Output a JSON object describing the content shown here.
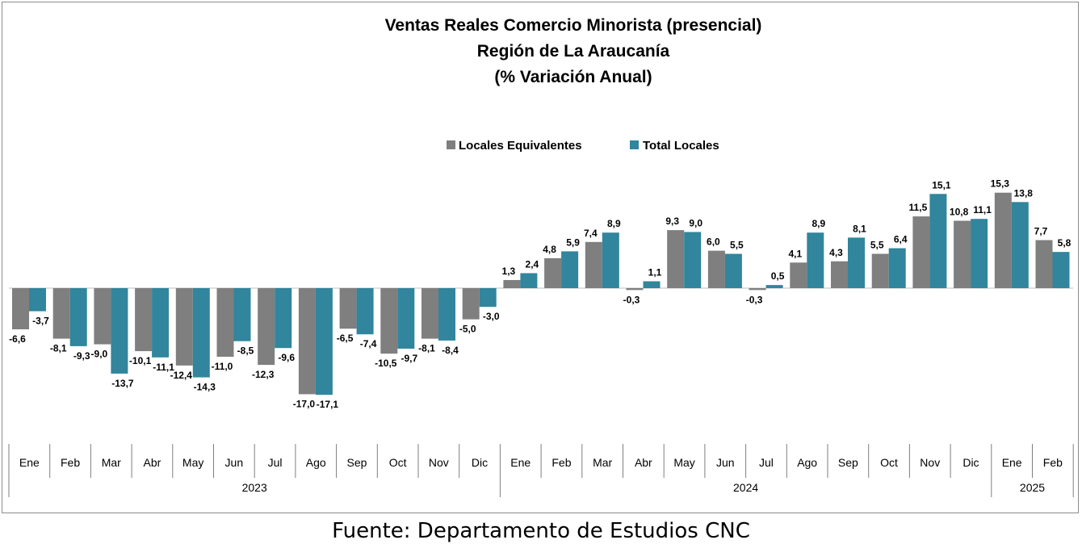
{
  "title_lines": [
    "Ventas Reales Comercio Minorista (presencial)",
    "Región de La Araucanía",
    "(% Variación Anual)"
  ],
  "source_note": "Fuente: Departamento de Estudios CNC",
  "colors": {
    "equivalentes": "#7f7f7f",
    "total": "#31859c"
  },
  "chart_data": {
    "type": "bar",
    "categories": [
      "Ene",
      "Feb",
      "Mar",
      "Abr",
      "May",
      "Jun",
      "Jul",
      "Ago",
      "Sep",
      "Oct",
      "Nov",
      "Dic",
      "Ene",
      "Feb",
      "Mar",
      "Abr",
      "May",
      "Jun",
      "Jul",
      "Ago",
      "Sep",
      "Oct",
      "Nov",
      "Dic",
      "Ene",
      "Feb"
    ],
    "years": [
      {
        "label": "2023",
        "start": 0,
        "count": 12
      },
      {
        "label": "2024",
        "start": 12,
        "count": 12
      },
      {
        "label": "2025",
        "start": 24,
        "count": 2
      }
    ],
    "series": [
      {
        "name": "Locales Equivalentes",
        "values": [
          -6.6,
          -8.1,
          -9.0,
          -10.1,
          -12.4,
          -11.0,
          -12.3,
          -17.0,
          -6.5,
          -10.5,
          -8.1,
          -5.0,
          1.3,
          4.8,
          7.4,
          -0.3,
          9.3,
          6.0,
          -0.3,
          4.1,
          4.3,
          5.5,
          11.5,
          10.8,
          15.3,
          7.7
        ],
        "labels": [
          "-6,6",
          "-8,1",
          "-9,0",
          "-10,1",
          "-12,4",
          "-11,0",
          "-12,3",
          "-17,0",
          "-6,5",
          "-10,5",
          "-8,1",
          "-5,0",
          "1,3",
          "4,8",
          "7,4",
          "-0,3",
          "9,3",
          "6,0",
          "-0,3",
          "4,1",
          "4,3",
          "5,5",
          "11,5",
          "10,8",
          "15,3",
          "7,7"
        ]
      },
      {
        "name": "Total Locales",
        "values": [
          -3.7,
          -9.3,
          -13.7,
          -11.1,
          -14.3,
          -8.5,
          -9.6,
          -17.1,
          -7.4,
          -9.7,
          -8.4,
          -3.0,
          2.4,
          5.9,
          8.9,
          1.1,
          9.0,
          5.5,
          0.5,
          8.9,
          8.1,
          6.4,
          15.1,
          11.1,
          13.8,
          5.8
        ],
        "labels": [
          "-3,7",
          "-9,3",
          "-13,7",
          "-11,1",
          "-14,3",
          "-8,5",
          "-9,6",
          "-17,1",
          "-7,4",
          "-9,7",
          "-8,4",
          "-3,0",
          "2,4",
          "5,9",
          "8,9",
          "1,1",
          "9,0",
          "5,5",
          "0,5",
          "8,9",
          "8,1",
          "6,4",
          "15,1",
          "11,1",
          "13,8",
          "5,8"
        ]
      }
    ],
    "legend_position": "top-center",
    "grid": false,
    "ylim": [
      -20,
      20
    ]
  }
}
